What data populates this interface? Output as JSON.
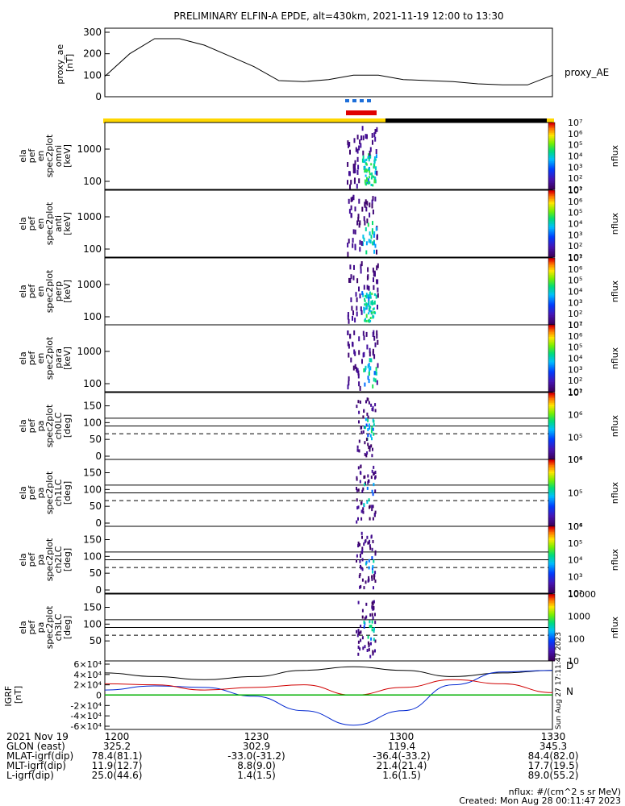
{
  "title": "PRELIMINARY ELFIN-A EPDE, alt=430km, 2021-11-19 12:00 to 13:30",
  "colors": {
    "black": "#000000",
    "sunlight_bar": "#ffd700",
    "science_blue": "#1e6fd9",
    "science_red": "#e00000",
    "grf_x": "#000000",
    "grf_y": "#0026d0",
    "grf_z": "#d00000",
    "grf_t": "#00b000"
  },
  "ae_panel": {
    "ylabel": "proxy_ae\n[nT]",
    "side_label": "proxy_AE",
    "yticks": [
      "0",
      "100",
      "200",
      "300"
    ]
  },
  "energy_panels": [
    {
      "ylabel": [
        "ela",
        "pef",
        "en",
        "spec2plot",
        "omni",
        "[keV]"
      ],
      "yticks": [
        "100",
        "1000"
      ],
      "cbar_ticks": [
        "10¹",
        "10²",
        "10³",
        "10⁴",
        "10⁵",
        "10⁶",
        "10⁷"
      ],
      "cbar_label": "nflux"
    },
    {
      "ylabel": [
        "ela",
        "pef",
        "en",
        "spec2plot",
        "anti",
        "[keV]"
      ],
      "yticks": [
        "100",
        "1000"
      ],
      "cbar_ticks": [
        "10¹",
        "10²",
        "10³",
        "10⁴",
        "10⁵",
        "10⁶",
        "10⁷"
      ],
      "cbar_label": "nflux"
    },
    {
      "ylabel": [
        "ela",
        "pef",
        "en",
        "spec2plot",
        "perp",
        "[keV]"
      ],
      "yticks": [
        "100",
        "1000"
      ],
      "cbar_ticks": [
        "10¹",
        "10²",
        "10³",
        "10⁴",
        "10⁵",
        "10⁶",
        "10⁷"
      ],
      "cbar_label": "nflux"
    },
    {
      "ylabel": [
        "ela",
        "pef",
        "en",
        "spec2plot",
        "para",
        "[keV]"
      ],
      "yticks": [
        "100",
        "1000"
      ],
      "cbar_ticks": [
        "10¹",
        "10²",
        "10³",
        "10⁴",
        "10⁵",
        "10⁶",
        "10⁷"
      ],
      "cbar_label": "nflux"
    }
  ],
  "pa_panels": [
    {
      "ylabel": [
        "ela",
        "pef",
        "pa",
        "spec2plot",
        "ch0LC",
        "[deg]"
      ],
      "yticks": [
        "0",
        "50",
        "100",
        "150"
      ],
      "cbar_ticks": [
        "10⁴",
        "10⁵",
        "10⁶",
        "10⁷"
      ],
      "cbar_label": "nflux"
    },
    {
      "ylabel": [
        "ela",
        "pef",
        "pa",
        "spec2plot",
        "ch1LC",
        "[deg]"
      ],
      "yticks": [
        "0",
        "50",
        "100",
        "150"
      ],
      "cbar_ticks": [
        "10⁴",
        "10⁵",
        "10⁶"
      ],
      "cbar_label": "nflux"
    },
    {
      "ylabel": [
        "ela",
        "pef",
        "pa",
        "spec2plot",
        "ch2LC",
        "[deg]"
      ],
      "yticks": [
        "0",
        "50",
        "100",
        "150"
      ],
      "cbar_ticks": [
        "10²",
        "10³",
        "10⁴",
        "10⁵",
        "10⁶"
      ],
      "cbar_label": "nflux"
    },
    {
      "ylabel": [
        "ela",
        "pef",
        "pa",
        "spec2plot",
        "ch3LC",
        "[deg]"
      ],
      "yticks": [
        "50",
        "100",
        "150"
      ],
      "cbar_ticks": [
        "10",
        "100",
        "1000",
        "10000"
      ],
      "cbar_label": "nflux"
    }
  ],
  "grf_panel": {
    "ylabel": "IGRF\n[nT]",
    "yticks": [
      "-6×10⁴",
      "-4×10⁴",
      "-2×10⁴",
      "0",
      "2×10⁴",
      "4×10⁴",
      "6×10⁴"
    ],
    "component_labels": [
      "D",
      "N"
    ],
    "stamp": "Sun Aug 27 17:11:47 2023"
  },
  "footer": {
    "rows": [
      [
        "2021 Nov 19",
        "1200",
        "1230",
        "1300",
        "1330"
      ],
      [
        "GLON (east)",
        "325.2",
        "302.9",
        "119.4",
        "345.3"
      ],
      [
        "MLAT-igrf(dip)",
        "78.4(81.1)",
        "-33.0(-31.2)",
        "-36.4(-33.2)",
        "84.4(82.0)"
      ],
      [
        "MLT-igrf(dip)",
        "11.9(12.7)",
        "8.8(9.0)",
        "21.4(21.4)",
        "17.7(19.5)"
      ],
      [
        "L-igrf(dip)",
        "25.0(44.6)",
        "1.4(1.5)",
        "1.6(1.5)",
        "89.0(55.2)"
      ]
    ],
    "units_note": "nflux: #/(cm^2 s sr MeV)",
    "created": "Created: Mon Aug 28 00:11:47 2023"
  },
  "chart_data": [
    {
      "type": "line",
      "title": "PRELIMINARY ELFIN-A EPDE, alt=430km, 2021-11-19 12:00 to 13:30",
      "xlabel": "",
      "ylabel": "proxy_ae [nT]",
      "x": [
        "12:00",
        "12:05",
        "12:10",
        "12:15",
        "12:20",
        "12:25",
        "12:30",
        "12:35",
        "12:40",
        "12:45",
        "12:50",
        "12:55",
        "13:00",
        "13:05",
        "13:10",
        "13:15",
        "13:20",
        "13:25",
        "13:30"
      ],
      "series": [
        {
          "name": "proxy_AE",
          "values": [
            95,
            200,
            270,
            270,
            240,
            190,
            140,
            75,
            70,
            80,
            100,
            100,
            80,
            75,
            70,
            60,
            55,
            55,
            100
          ]
        }
      ],
      "ylim": [
        0,
        300
      ]
    },
    {
      "type": "heatmap",
      "title": "",
      "ylabel": "[keV]",
      "ylim": [
        50,
        7000
      ],
      "scale": "log",
      "xlim": [
        "12:00",
        "13:30"
      ],
      "burst_window": [
        "12:46",
        "12:48"
      ]
    },
    {
      "type": "line",
      "title": "",
      "ylabel": "IGRF [nT]",
      "x": [
        "12:00",
        "12:10",
        "12:20",
        "12:30",
        "12:40",
        "12:50",
        "13:00",
        "13:10",
        "13:20",
        "13:30"
      ],
      "series": [
        {
          "name": "",
          "values": [
            43000,
            36000,
            30000,
            36000,
            48000,
            55000,
            48000,
            36000,
            43000,
            48000
          ]
        },
        {
          "name": "",
          "values": [
            10000,
            18000,
            15000,
            -2000,
            -30000,
            -58000,
            -30000,
            20000,
            45000,
            48000
          ]
        },
        {
          "name": "",
          "values": [
            22000,
            20000,
            10000,
            15000,
            20000,
            0,
            15000,
            30000,
            22000,
            5000
          ]
        },
        {
          "name": "",
          "values": [
            0,
            0,
            0,
            0,
            0,
            0,
            0,
            0,
            0,
            0
          ]
        }
      ],
      "ylim": [
        -60000,
        60000
      ]
    }
  ]
}
